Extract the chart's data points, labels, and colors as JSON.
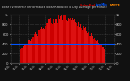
{
  "title": "Solar PV/Inverter Performance Solar Radiation & Day Average per Minute",
  "title_color": "#cccccc",
  "bg_color": "#111111",
  "plot_bg_color": "#111111",
  "grid_color": "#444444",
  "bar_color": "#cc0000",
  "bar_top_color": "#ff3333",
  "avg_line_color": "#0055ff",
  "avg_line_value": 0.4,
  "xlabel_sample_count": 144,
  "ylim": [
    0,
    1.0
  ],
  "legend_labels": [
    "Solar Rad",
    "Avg/Min",
    "NOVCN"
  ],
  "legend_colors": [
    "#cc0000",
    "#0055ff",
    "#ff8800"
  ],
  "ytick_labels": [
    "0",
    "200",
    "400",
    "600",
    "800",
    "1k"
  ],
  "ytick_positions": [
    0.0,
    0.2,
    0.4,
    0.6,
    0.8,
    1.0
  ]
}
